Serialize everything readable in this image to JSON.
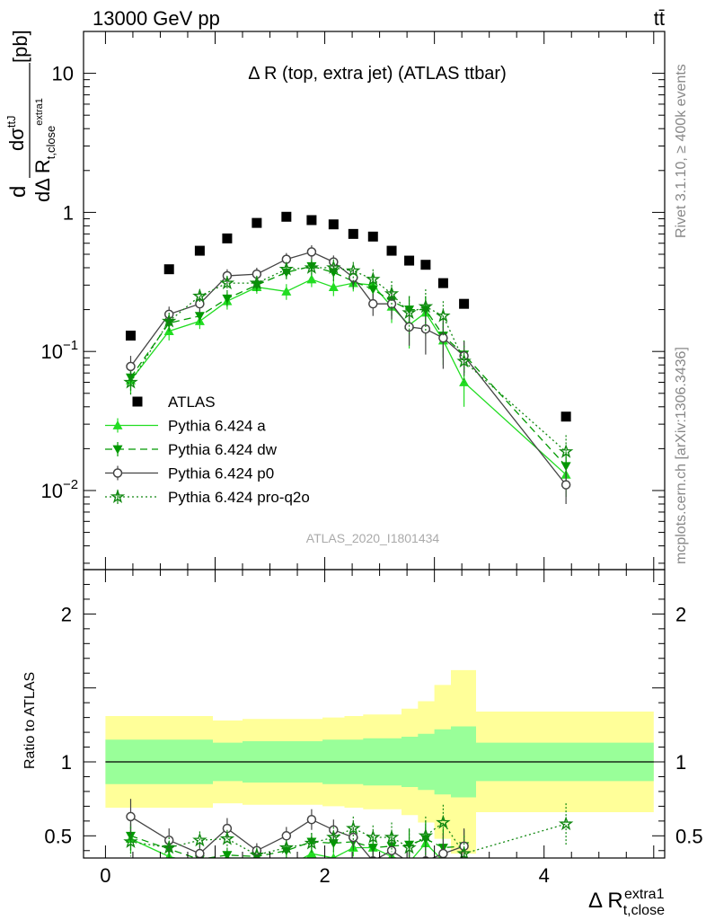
{
  "header": {
    "energy": "13000 GeV pp",
    "process": "tt̄"
  },
  "side_labels": {
    "rivet": "Rivet 3.1.10, ≥ 400k events",
    "mcplots": "mcplots.cern.ch [arXiv:1306.3436]"
  },
  "watermark": "ATLAS_2020_I1801434",
  "chart_data": [
    {
      "type": "scatter",
      "title": "Δ R (top, extra jet) (ATLAS ttbar)",
      "ylabel": "dσ^ttJ / dΔ R_t,close^extra1 [pb]",
      "xlabel": "Δ R_t,close^extra1",
      "yscale": "log",
      "xlim": [
        -0.2,
        5.1
      ],
      "ylim": [
        0.0027,
        20
      ],
      "y_ticks": [
        {
          "v": 0.01,
          "label": "10",
          "exp": "−2"
        },
        {
          "v": 0.1,
          "label": "10",
          "exp": "−1"
        },
        {
          "v": 1,
          "label": "1",
          "exp": ""
        },
        {
          "v": 10,
          "label": "10",
          "exp": ""
        }
      ],
      "legend_placement": "bottom-left",
      "series": [
        {
          "name": "ATLAS",
          "color": "#000000",
          "marker": "square",
          "line": "none",
          "x": [
            0.23,
            0.58,
            0.86,
            1.11,
            1.38,
            1.65,
            1.88,
            2.08,
            2.26,
            2.44,
            2.61,
            2.77,
            2.92,
            3.08,
            3.27,
            4.2
          ],
          "y": [
            0.13,
            0.39,
            0.53,
            0.65,
            0.84,
            0.93,
            0.88,
            0.82,
            0.7,
            0.67,
            0.53,
            0.45,
            0.42,
            0.31,
            0.22,
            0.034
          ],
          "err": [
            0,
            0,
            0,
            0,
            0,
            0,
            0,
            0,
            0,
            0,
            0,
            0,
            0,
            0,
            0,
            0
          ]
        },
        {
          "name": "Pythia 6.424 a",
          "color": "#22dd22",
          "marker": "triangle-up",
          "line": "solid",
          "x": [
            0.23,
            0.58,
            0.86,
            1.11,
            1.38,
            1.65,
            1.88,
            2.08,
            2.26,
            2.44,
            2.61,
            2.77,
            2.92,
            3.08,
            3.27,
            4.2
          ],
          "y": [
            0.062,
            0.14,
            0.165,
            0.23,
            0.29,
            0.27,
            0.33,
            0.29,
            0.31,
            0.3,
            0.21,
            0.155,
            0.19,
            0.12,
            0.06,
            0.013
          ],
          "err": [
            0.012,
            0.02,
            0.02,
            0.03,
            0.03,
            0.035,
            0.04,
            0.04,
            0.04,
            0.05,
            0.05,
            0.05,
            0.06,
            0.04,
            0.02,
            0.004
          ]
        },
        {
          "name": "Pythia 6.424 dw",
          "color": "#009900",
          "marker": "triangle-down",
          "line": "dashed",
          "x": [
            0.23,
            0.58,
            0.86,
            1.11,
            1.38,
            1.65,
            1.88,
            2.08,
            2.26,
            2.44,
            2.61,
            2.77,
            2.92,
            3.08,
            3.27,
            4.2
          ],
          "y": [
            0.065,
            0.16,
            0.18,
            0.24,
            0.3,
            0.37,
            0.41,
            0.37,
            0.32,
            0.28,
            0.23,
            0.2,
            0.2,
            0.13,
            0.095,
            0.015
          ],
          "err": [
            0.012,
            0.02,
            0.02,
            0.03,
            0.03,
            0.04,
            0.05,
            0.05,
            0.04,
            0.05,
            0.05,
            0.05,
            0.05,
            0.04,
            0.025,
            0.004
          ]
        },
        {
          "name": "Pythia 6.424 p0",
          "color": "#444444",
          "marker": "circle-open",
          "line": "solid",
          "x": [
            0.23,
            0.58,
            0.86,
            1.11,
            1.38,
            1.65,
            1.88,
            2.08,
            2.26,
            2.44,
            2.61,
            2.77,
            2.92,
            3.08,
            3.27,
            4.2
          ],
          "y": [
            0.078,
            0.185,
            0.22,
            0.35,
            0.36,
            0.46,
            0.52,
            0.44,
            0.34,
            0.22,
            0.22,
            0.15,
            0.145,
            0.125,
            0.093,
            0.011
          ],
          "err": [
            0.015,
            0.025,
            0.03,
            0.04,
            0.04,
            0.05,
            0.06,
            0.05,
            0.05,
            0.04,
            0.05,
            0.04,
            0.05,
            0.05,
            0.025,
            0.003
          ]
        },
        {
          "name": "Pythia 6.424 pro-q2o",
          "color": "#118811",
          "marker": "star",
          "line": "dotted",
          "x": [
            0.23,
            0.58,
            0.86,
            1.11,
            1.38,
            1.65,
            1.88,
            2.08,
            2.26,
            2.44,
            2.61,
            2.77,
            2.92,
            3.08,
            3.27,
            4.2
          ],
          "y": [
            0.06,
            0.165,
            0.25,
            0.31,
            0.31,
            0.39,
            0.4,
            0.4,
            0.38,
            0.33,
            0.26,
            0.19,
            0.21,
            0.18,
            0.085,
            0.019
          ],
          "err": [
            0.012,
            0.025,
            0.03,
            0.04,
            0.04,
            0.05,
            0.06,
            0.06,
            0.06,
            0.06,
            0.06,
            0.06,
            0.07,
            0.05,
            0.025,
            0.006
          ]
        }
      ]
    },
    {
      "type": "line",
      "title": "",
      "ylabel": "Ratio to ATLAS",
      "xlabel": "Δ R_t,close^extra1",
      "xlim": [
        -0.2,
        5.1
      ],
      "ylim": [
        0.35,
        2.3
      ],
      "x_ticks": [
        0,
        2,
        4
      ],
      "y_ticks": [
        0.5,
        1,
        2
      ],
      "bands": {
        "edges": [
          0,
          0.45,
          0.72,
          0.98,
          1.25,
          1.52,
          1.78,
          1.98,
          2.18,
          2.35,
          2.52,
          2.7,
          2.85,
          3.0,
          3.15,
          3.38,
          5.0
        ],
        "inner": [
          0.15,
          0.15,
          0.15,
          0.13,
          0.14,
          0.14,
          0.14,
          0.15,
          0.15,
          0.16,
          0.16,
          0.17,
          0.19,
          0.22,
          0.24,
          0.13
        ],
        "outer": [
          0.31,
          0.31,
          0.31,
          0.28,
          0.29,
          0.29,
          0.29,
          0.3,
          0.31,
          0.32,
          0.32,
          0.36,
          0.41,
          0.52,
          0.62,
          0.34
        ]
      },
      "series": [
        {
          "name": "Pythia 6.424 a",
          "color": "#22dd22",
          "marker": "triangle-up",
          "line": "solid",
          "x": [
            0.23,
            0.58,
            0.86,
            1.11,
            1.38,
            1.65,
            1.88,
            2.08,
            2.26,
            2.44,
            2.61,
            2.77,
            2.92,
            3.08,
            3.27
          ],
          "y": [
            0.48,
            0.36,
            0.31,
            0.35,
            0.35,
            0.29,
            0.38,
            0.35,
            0.42,
            0.42,
            0.36,
            0.32,
            0.45,
            0.33,
            0.27
          ],
          "err": [
            0.1,
            0.06,
            0.05,
            0.05,
            0.04,
            0.04,
            0.05,
            0.05,
            0.06,
            0.07,
            0.08,
            0.1,
            0.12,
            0.12,
            0.1
          ]
        },
        {
          "name": "Pythia 6.424 dw",
          "color": "#009900",
          "marker": "triangle-down",
          "line": "dashed",
          "x": [
            0.23,
            0.58,
            0.86,
            1.11,
            1.38,
            1.65,
            1.88,
            2.08,
            2.26,
            2.44,
            2.61,
            2.77,
            2.92,
            3.08,
            3.27
          ],
          "y": [
            0.5,
            0.41,
            0.34,
            0.37,
            0.36,
            0.4,
            0.46,
            0.45,
            0.46,
            0.42,
            0.43,
            0.44,
            0.48,
            0.42,
            0.43
          ],
          "err": [
            0.1,
            0.06,
            0.05,
            0.05,
            0.04,
            0.05,
            0.06,
            0.06,
            0.06,
            0.07,
            0.09,
            0.11,
            0.12,
            0.13,
            0.11
          ]
        },
        {
          "name": "Pythia 6.424 p0",
          "color": "#444444",
          "marker": "circle-open",
          "line": "solid",
          "x": [
            0.23,
            0.58,
            0.86,
            1.11,
            1.38,
            1.65,
            1.88,
            2.08,
            2.26,
            2.44,
            2.61,
            2.77,
            2.92,
            3.08,
            3.27
          ],
          "y": [
            0.63,
            0.47,
            0.38,
            0.55,
            0.4,
            0.5,
            0.61,
            0.54,
            0.49,
            0.33,
            0.4,
            0.32,
            0.33,
            0.38,
            0.43
          ],
          "err": [
            0.12,
            0.08,
            0.07,
            0.07,
            0.05,
            0.06,
            0.07,
            0.07,
            0.07,
            0.07,
            0.09,
            0.1,
            0.11,
            0.14,
            0.12
          ]
        },
        {
          "name": "Pythia 6.424 pro-q2o",
          "color": "#118811",
          "marker": "star",
          "line": "dotted",
          "x": [
            0.23,
            0.58,
            0.86,
            1.11,
            1.38,
            1.65,
            1.88,
            2.08,
            2.26,
            2.44,
            2.61,
            2.77,
            2.92,
            3.08,
            3.27,
            4.2
          ],
          "y": [
            0.46,
            0.42,
            0.47,
            0.48,
            0.37,
            0.42,
            0.45,
            0.49,
            0.55,
            0.49,
            0.49,
            0.42,
            0.5,
            0.59,
            0.38,
            0.58
          ],
          "err": [
            0.1,
            0.07,
            0.06,
            0.06,
            0.05,
            0.05,
            0.07,
            0.07,
            0.08,
            0.08,
            0.1,
            0.12,
            0.13,
            0.12,
            0.12,
            0.14
          ]
        }
      ]
    }
  ]
}
